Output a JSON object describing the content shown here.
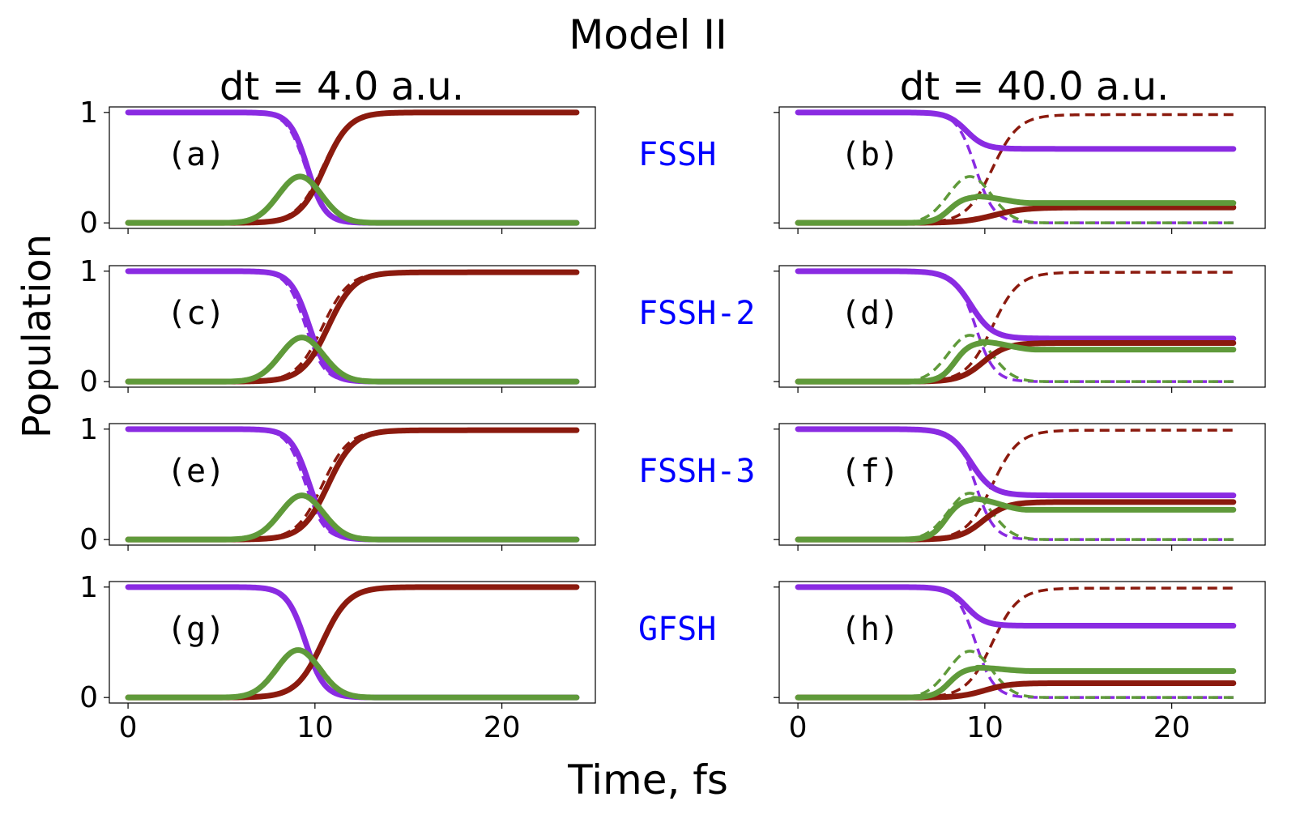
{
  "figure": {
    "suptitle": "Model II",
    "ylabel": "Population",
    "xlabel": "Time, fs"
  },
  "columns": [
    {
      "title": "dt = 4.0 a.u."
    },
    {
      "title": "dt = 40.0 a.u."
    }
  ],
  "methods": [
    {
      "label": "FSSH"
    },
    {
      "label": "FSSH-2"
    },
    {
      "label": "FSSH-3"
    },
    {
      "label": "GFSH"
    }
  ],
  "colors": {
    "purple": "#8a2be2",
    "green": "#5f9a3a",
    "red": "#8b1a0e",
    "method_label": "#0000ff"
  },
  "axis": {
    "xlim": [
      -1,
      25
    ],
    "ylim": [
      -0.05,
      1.05
    ],
    "xticks": [
      0,
      10,
      20
    ],
    "xtick_labels": [
      "0",
      "10",
      "20"
    ],
    "yticks": [
      0,
      1
    ],
    "ytick_labels": [
      "0",
      "1"
    ]
  },
  "chart_data": [
    {
      "type": "line",
      "panel": "(a)",
      "column": 0,
      "row": 0,
      "t_end": 24,
      "reference": {
        "purple_final": 0.0,
        "green_peak": 0.42,
        "red_final": 1.0
      },
      "series": [
        {
          "color": "purple",
          "t_start": 8.2,
          "t_end": 11.0,
          "final": 0.0,
          "style": "solid"
        },
        {
          "color": "red",
          "t_start": 8.5,
          "t_end": 12.5,
          "final": 1.0,
          "style": "solid"
        },
        {
          "color": "green",
          "peak_t": 9.2,
          "peak": 0.42,
          "final": 0.0,
          "style": "solid"
        }
      ]
    },
    {
      "type": "line",
      "panel": "(b)",
      "column": 1,
      "row": 0,
      "t_end": 23.3,
      "reference": {
        "purple_final": 0.0,
        "green_peak": 0.42,
        "red_final": 0.98
      },
      "series": [
        {
          "color": "purple",
          "t_start": 7.5,
          "t_end": 10.5,
          "final": 0.67,
          "style": "solid"
        },
        {
          "color": "red",
          "t_start": 8.0,
          "t_end": 13.0,
          "final": 0.14,
          "style": "solid"
        },
        {
          "color": "green",
          "peak_t": 9.5,
          "peak": 0.24,
          "final": 0.18,
          "style": "solid"
        }
      ]
    },
    {
      "type": "line",
      "panel": "(c)",
      "column": 0,
      "row": 1,
      "t_end": 24,
      "reference": {
        "purple_final": 0.0,
        "green_peak": 0.4,
        "red_final": 0.99
      },
      "series": [
        {
          "color": "purple",
          "t_start": 8.2,
          "t_end": 11.2,
          "final": 0.0,
          "style": "solid"
        },
        {
          "color": "red",
          "t_start": 8.6,
          "t_end": 12.8,
          "final": 0.99,
          "style": "solid"
        },
        {
          "color": "green",
          "peak_t": 9.3,
          "peak": 0.4,
          "final": 0.0,
          "style": "solid"
        }
      ]
    },
    {
      "type": "line",
      "panel": "(d)",
      "column": 1,
      "row": 1,
      "t_end": 23.3,
      "reference": {
        "purple_final": 0.0,
        "green_peak": 0.42,
        "red_final": 0.99
      },
      "series": [
        {
          "color": "purple",
          "t_start": 7.5,
          "t_end": 11.0,
          "final": 0.39,
          "style": "solid"
        },
        {
          "color": "red",
          "t_start": 8.0,
          "t_end": 11.8,
          "final": 0.35,
          "style": "solid"
        },
        {
          "color": "green",
          "peak_t": 9.8,
          "peak": 0.36,
          "final": 0.29,
          "style": "solid"
        }
      ]
    },
    {
      "type": "line",
      "panel": "(e)",
      "column": 0,
      "row": 2,
      "t_end": 24,
      "reference": {
        "purple_final": 0.0,
        "green_peak": 0.4,
        "red_final": 0.99
      },
      "series": [
        {
          "color": "purple",
          "t_start": 8.2,
          "t_end": 11.2,
          "final": 0.0,
          "style": "solid"
        },
        {
          "color": "red",
          "t_start": 8.6,
          "t_end": 12.8,
          "final": 0.99,
          "style": "solid"
        },
        {
          "color": "green",
          "peak_t": 9.3,
          "peak": 0.4,
          "final": 0.0,
          "style": "solid"
        }
      ]
    },
    {
      "type": "line",
      "panel": "(f)",
      "column": 1,
      "row": 2,
      "t_end": 23.3,
      "reference": {
        "purple_final": 0.0,
        "green_peak": 0.42,
        "red_final": 0.99
      },
      "series": [
        {
          "color": "purple",
          "t_start": 7.5,
          "t_end": 11.0,
          "final": 0.4,
          "style": "solid"
        },
        {
          "color": "red",
          "t_start": 8.0,
          "t_end": 11.8,
          "final": 0.34,
          "style": "solid"
        },
        {
          "color": "green",
          "peak_t": 9.3,
          "peak": 0.37,
          "final": 0.27,
          "style": "solid"
        }
      ]
    },
    {
      "type": "line",
      "panel": "(g)",
      "column": 0,
      "row": 3,
      "t_end": 24,
      "reference": {
        "purple_final": 0.0,
        "green_peak": 0.43,
        "red_final": 1.0
      },
      "series": [
        {
          "color": "purple",
          "t_start": 8.0,
          "t_end": 11.0,
          "final": 0.0,
          "style": "solid"
        },
        {
          "color": "red",
          "t_start": 8.3,
          "t_end": 12.5,
          "final": 1.0,
          "style": "solid"
        },
        {
          "color": "green",
          "peak_t": 9.1,
          "peak": 0.43,
          "final": 0.0,
          "style": "solid"
        }
      ]
    },
    {
      "type": "line",
      "panel": "(h)",
      "column": 1,
      "row": 3,
      "t_end": 23.3,
      "reference": {
        "purple_final": 0.0,
        "green_peak": 0.42,
        "red_final": 0.99
      },
      "series": [
        {
          "color": "purple",
          "t_start": 7.5,
          "t_end": 10.5,
          "final": 0.65,
          "style": "solid"
        },
        {
          "color": "red",
          "t_start": 8.0,
          "t_end": 12.0,
          "final": 0.13,
          "style": "solid"
        },
        {
          "color": "green",
          "peak_t": 9.5,
          "peak": 0.27,
          "final": 0.24,
          "style": "solid"
        }
      ]
    }
  ]
}
